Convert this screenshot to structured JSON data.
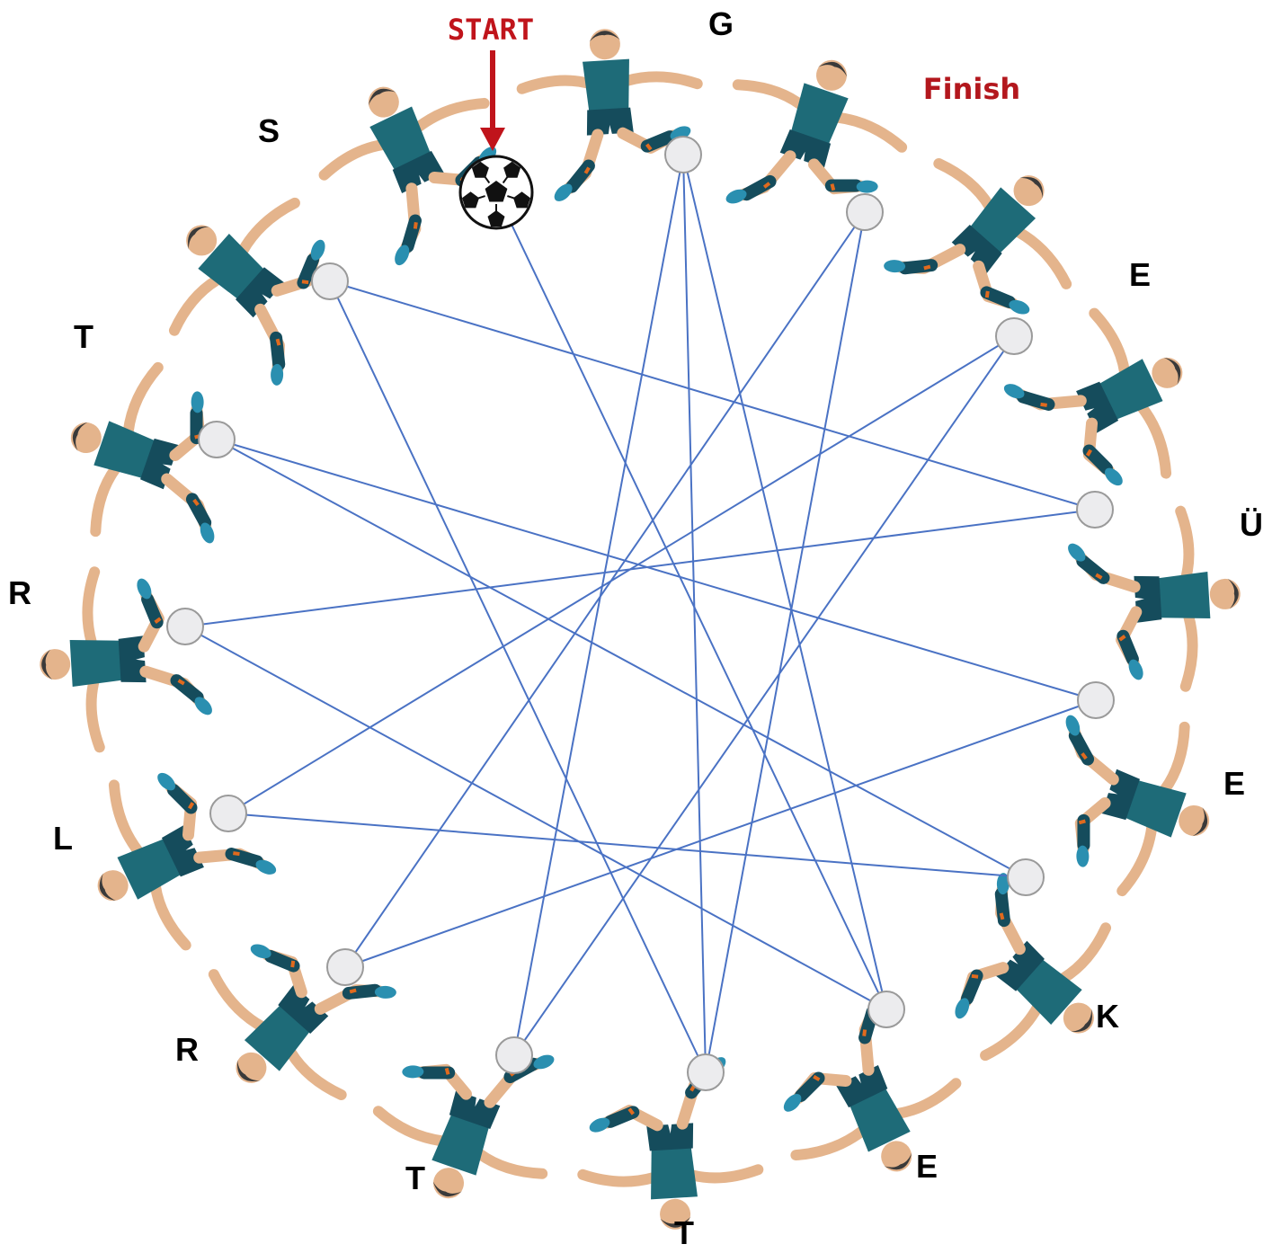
{
  "labels": {
    "start": "START",
    "finish": "Finish"
  },
  "letters": [
    "G",
    "E",
    "Ü",
    "E",
    "K",
    "E",
    "T",
    "T",
    "R",
    "L",
    "R",
    "T",
    "S"
  ],
  "colors": {
    "line": "#4a72c4",
    "circle_fill": "#ececee",
    "circle_stroke": "#9a9a9a",
    "jersey": "#1e6b78",
    "shorts": "#154c5c",
    "skin": "#e4b48c",
    "hair": "#3a3a3a",
    "accent": "#c0141b"
  },
  "icons": {
    "ball": "soccer-ball-icon",
    "arrow": "arrow-down-icon",
    "player": "soccer-player-icon"
  }
}
